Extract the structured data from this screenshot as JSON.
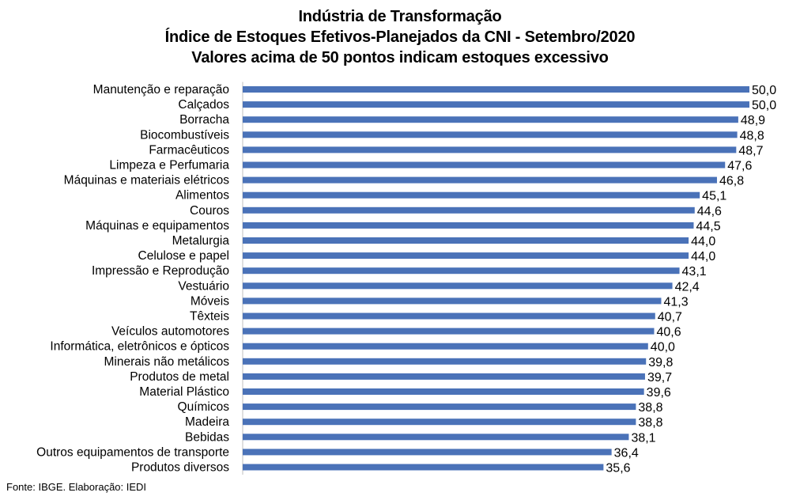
{
  "chart_data": {
    "type": "bar",
    "orientation": "horizontal",
    "title_lines": [
      "Indústria de Transformação",
      "Índice de Estoques Efetivos-Planejados da CNI - Setembro/2020",
      "Valores acima de 50 pontos indicam estoques excessivo"
    ],
    "categories": [
      "Manutenção e reparação",
      "Calçados",
      "Borracha",
      "Biocombustíveis",
      "Farmacêuticos",
      "Limpeza e Perfumaria",
      "Máquinas e materiais elétricos",
      "Alimentos",
      "Couros",
      "Máquinas e equipamentos",
      "Metalurgia",
      "Celulose e papel",
      "Impressão e Reprodução",
      "Vestuário",
      "Móveis",
      "Têxteis",
      "Veículos automotores",
      "Informática, eletrônicos e ópticos",
      "Minerais não metálicos",
      "Produtos de metal",
      "Material Plástico",
      "Químicos",
      "Madeira",
      "Bebidas",
      "Outros equipamentos de transporte",
      "Produtos diversos"
    ],
    "values": [
      50.0,
      50.0,
      48.9,
      48.8,
      48.7,
      47.6,
      46.8,
      45.1,
      44.6,
      44.5,
      44.0,
      44.0,
      43.1,
      42.4,
      41.3,
      40.7,
      40.6,
      40.0,
      39.8,
      39.7,
      39.6,
      38.8,
      38.8,
      38.1,
      36.4,
      35.6
    ],
    "value_labels": [
      "50,0",
      "50,0",
      "48,9",
      "48,8",
      "48,7",
      "47,6",
      "46,8",
      "45,1",
      "44,6",
      "44,5",
      "44,0",
      "44,0",
      "43,1",
      "42,4",
      "41,3",
      "40,7",
      "40,6",
      "40,0",
      "39,8",
      "39,7",
      "39,6",
      "38,8",
      "38,8",
      "38,1",
      "36,4",
      "35,6"
    ],
    "xlim": [
      0,
      50
    ],
    "grid": false,
    "legend": "none",
    "bar_color": "#4a72b8"
  },
  "source_note": "Fonte: IBGE. Elaboração: IEDI"
}
